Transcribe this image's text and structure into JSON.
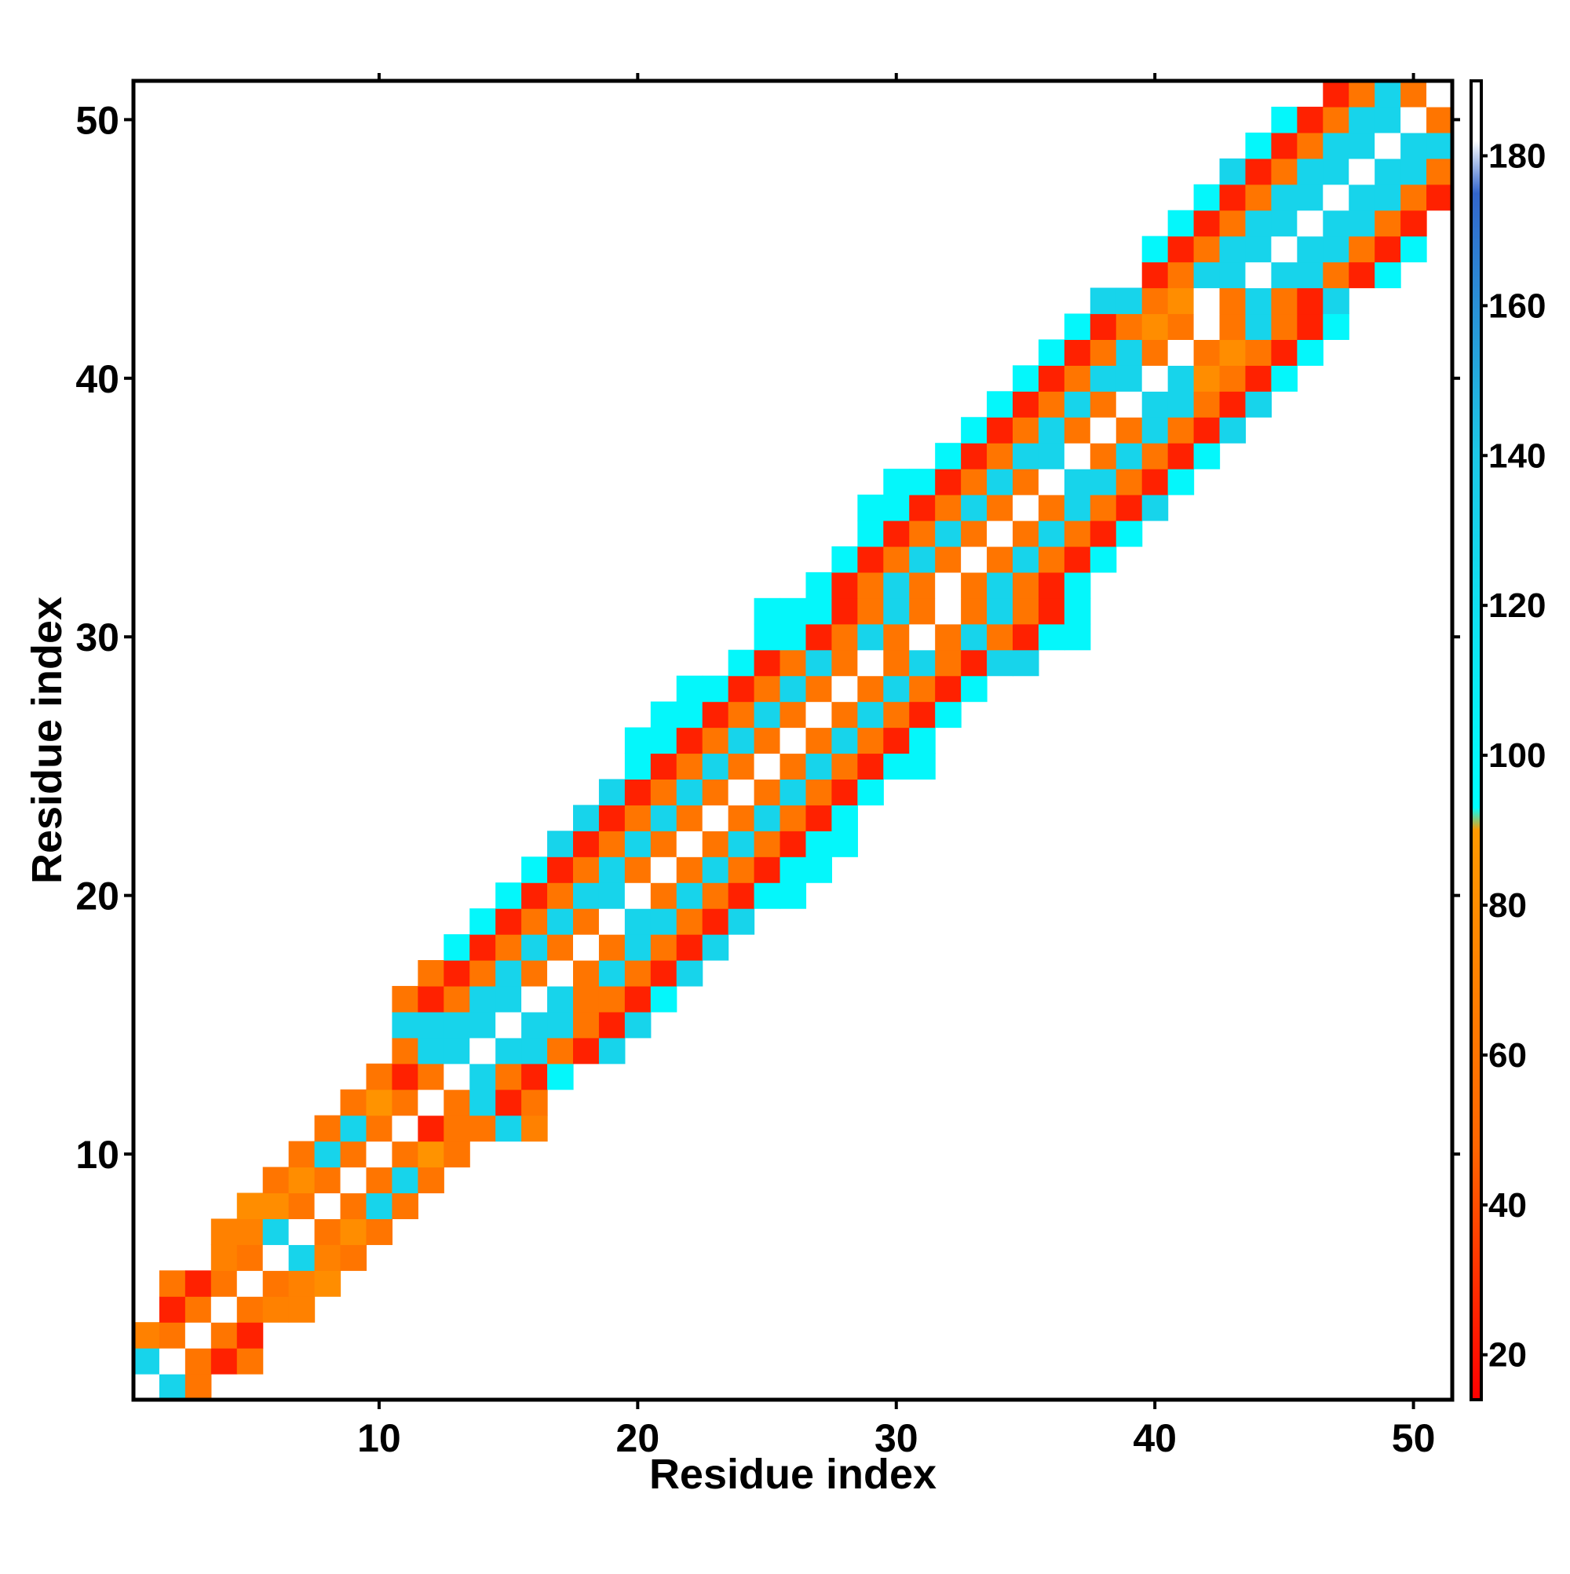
{
  "chart_data": {
    "type": "heatmap",
    "title": "",
    "xlabel": "Residue index",
    "ylabel": "Residue index",
    "x_range": [
      0.5,
      51.5
    ],
    "y_range": [
      0.5,
      51.5
    ],
    "x_ticks": [
      "10",
      "20",
      "30",
      "40",
      "50"
    ],
    "y_ticks": [
      "10",
      "20",
      "30",
      "40",
      "50"
    ],
    "x_tick_values": [
      10,
      20,
      30,
      40,
      50
    ],
    "y_tick_values": [
      10,
      20,
      30,
      40,
      50
    ],
    "colorbar": {
      "range": [
        14,
        190
      ],
      "ticks": [
        "20",
        "40",
        "60",
        "80",
        "100",
        "120",
        "140",
        "160",
        "180"
      ],
      "tick_values": [
        20,
        40,
        60,
        80,
        100,
        120,
        140,
        160,
        180
      ],
      "stops": [
        {
          "value": 14,
          "color": "#ff0000"
        },
        {
          "value": 48,
          "color": "#ff6600"
        },
        {
          "value": 90,
          "color": "#ff9900"
        },
        {
          "value": 93,
          "color": "#00ffff"
        },
        {
          "value": 140,
          "color": "#1dc8e6"
        },
        {
          "value": 175,
          "color": "#3366cc"
        },
        {
          "value": 182,
          "color": "#ffffff"
        },
        {
          "value": 190,
          "color": "#ffffff"
        }
      ]
    },
    "band_width": 10,
    "rows": [
      {
        "residue": 1,
        "start": 1,
        "values": [
          190,
          130,
          60
        ]
      },
      {
        "residue": 2,
        "start": 1,
        "values": [
          130,
          190,
          60,
          25,
          60
        ]
      },
      {
        "residue": 3,
        "start": 1,
        "values": [
          70,
          60,
          190,
          60,
          25
        ]
      },
      {
        "residue": 4,
        "start": 2,
        "values": [
          25,
          60,
          190,
          60,
          70,
          70
        ]
      },
      {
        "residue": 5,
        "start": 2,
        "values": [
          60,
          25,
          60,
          190,
          60,
          70,
          80
        ]
      },
      {
        "residue": 6,
        "start": 4,
        "values": [
          70,
          60,
          190,
          130,
          70,
          60
        ]
      },
      {
        "residue": 7,
        "start": 4,
        "values": [
          70,
          70,
          130,
          190,
          60,
          80,
          60
        ]
      },
      {
        "residue": 8,
        "start": 5,
        "values": [
          80,
          80,
          60,
          190,
          60,
          130,
          60
        ]
      },
      {
        "residue": 9,
        "start": 6,
        "values": [
          60,
          80,
          60,
          190,
          60,
          130,
          60
        ]
      },
      {
        "residue": 10,
        "start": 7,
        "values": [
          60,
          130,
          60,
          190,
          60,
          85,
          60
        ]
      },
      {
        "residue": 11,
        "start": 8,
        "values": [
          60,
          130,
          60,
          190,
          25,
          60,
          60,
          130,
          70
        ]
      },
      {
        "residue": 12,
        "start": 9,
        "values": [
          60,
          85,
          60,
          190,
          60,
          130,
          25,
          60
        ]
      },
      {
        "residue": 13,
        "start": 10,
        "values": [
          60,
          25,
          60,
          190,
          130,
          60,
          25,
          100
        ]
      },
      {
        "residue": 14,
        "start": 11,
        "values": [
          60,
          130,
          130,
          190,
          130,
          130,
          60,
          25,
          130
        ]
      },
      {
        "residue": 15,
        "start": 11,
        "values": [
          130,
          130,
          130,
          130,
          190,
          130,
          130,
          60,
          25,
          130
        ]
      },
      {
        "residue": 16,
        "start": 11,
        "values": [
          60,
          25,
          60,
          130,
          130,
          190,
          130,
          60,
          60,
          25,
          100
        ]
      },
      {
        "residue": 17,
        "start": 12,
        "values": [
          60,
          25,
          60,
          130,
          60,
          190,
          60,
          130,
          60,
          25,
          130
        ]
      },
      {
        "residue": 18,
        "start": 13,
        "values": [
          100,
          25,
          60,
          130,
          60,
          190,
          60,
          130,
          60,
          25,
          130
        ]
      },
      {
        "residue": 19,
        "start": 14,
        "values": [
          100,
          25,
          60,
          130,
          60,
          190,
          130,
          130,
          60,
          25,
          130
        ]
      },
      {
        "residue": 20,
        "start": 15,
        "values": [
          100,
          25,
          60,
          130,
          130,
          190,
          60,
          130,
          60,
          25,
          100,
          100
        ]
      },
      {
        "residue": 21,
        "start": 16,
        "values": [
          100,
          25,
          60,
          130,
          60,
          190,
          60,
          130,
          60,
          25,
          100,
          100
        ]
      },
      {
        "residue": 22,
        "start": 17,
        "values": [
          130,
          25,
          60,
          130,
          60,
          190,
          60,
          130,
          60,
          25,
          100,
          100
        ]
      },
      {
        "residue": 23,
        "start": 18,
        "values": [
          130,
          25,
          60,
          130,
          60,
          190,
          60,
          130,
          60,
          25,
          100
        ]
      },
      {
        "residue": 24,
        "start": 19,
        "values": [
          130,
          25,
          60,
          130,
          60,
          190,
          60,
          130,
          60,
          25,
          100
        ]
      },
      {
        "residue": 25,
        "start": 20,
        "values": [
          100,
          25,
          60,
          130,
          60,
          190,
          60,
          130,
          60,
          25,
          100,
          100
        ]
      },
      {
        "residue": 26,
        "start": 20,
        "values": [
          100,
          100,
          25,
          60,
          130,
          60,
          190,
          60,
          130,
          60,
          25,
          100
        ]
      },
      {
        "residue": 27,
        "start": 21,
        "values": [
          100,
          100,
          25,
          60,
          130,
          60,
          190,
          60,
          130,
          60,
          25,
          100
        ]
      },
      {
        "residue": 28,
        "start": 22,
        "values": [
          100,
          100,
          25,
          60,
          130,
          60,
          190,
          60,
          130,
          60,
          25,
          100
        ]
      },
      {
        "residue": 29,
        "start": 24,
        "values": [
          100,
          25,
          60,
          130,
          60,
          190,
          60,
          130,
          60,
          25,
          130,
          130
        ]
      },
      {
        "residue": 30,
        "start": 25,
        "values": [
          100,
          100,
          25,
          60,
          130,
          60,
          190,
          60,
          130,
          60,
          25,
          100,
          100
        ]
      },
      {
        "residue": 31,
        "start": 25,
        "values": [
          100,
          100,
          100,
          25,
          60,
          130,
          60,
          190,
          60,
          130,
          60,
          25,
          100
        ]
      },
      {
        "residue": 32,
        "start": 27,
        "values": [
          100,
          25,
          60,
          130,
          60,
          190,
          60,
          130,
          60,
          25,
          100
        ]
      },
      {
        "residue": 33,
        "start": 28,
        "values": [
          100,
          25,
          60,
          130,
          60,
          190,
          60,
          130,
          60,
          25,
          100
        ]
      },
      {
        "residue": 34,
        "start": 29,
        "values": [
          100,
          25,
          60,
          130,
          60,
          190,
          60,
          130,
          60,
          25,
          100
        ]
      },
      {
        "residue": 35,
        "start": 29,
        "values": [
          100,
          100,
          25,
          60,
          130,
          60,
          190,
          60,
          130,
          60,
          25,
          130
        ]
      },
      {
        "residue": 36,
        "start": 30,
        "values": [
          100,
          100,
          25,
          60,
          130,
          60,
          190,
          130,
          130,
          60,
          25,
          100
        ]
      },
      {
        "residue": 37,
        "start": 32,
        "values": [
          100,
          25,
          60,
          130,
          130,
          190,
          60,
          130,
          60,
          25,
          100
        ]
      },
      {
        "residue": 38,
        "start": 33,
        "values": [
          100,
          25,
          60,
          130,
          60,
          190,
          60,
          130,
          60,
          25,
          130
        ]
      },
      {
        "residue": 39,
        "start": 34,
        "values": [
          100,
          25,
          60,
          130,
          60,
          190,
          130,
          130,
          60,
          25,
          130
        ]
      },
      {
        "residue": 40,
        "start": 35,
        "values": [
          100,
          25,
          60,
          130,
          130,
          190,
          130,
          80,
          60,
          25,
          100
        ]
      },
      {
        "residue": 41,
        "start": 36,
        "values": [
          100,
          25,
          60,
          130,
          60,
          190,
          60,
          80,
          60,
          25,
          100
        ]
      },
      {
        "residue": 42,
        "start": 37,
        "values": [
          100,
          25,
          60,
          80,
          60,
          190,
          60,
          130,
          60,
          25,
          100
        ]
      },
      {
        "residue": 43,
        "start": 38,
        "values": [
          130,
          130,
          60,
          80,
          190,
          60,
          130,
          60,
          25,
          130
        ]
      },
      {
        "residue": 44,
        "start": 40,
        "values": [
          25,
          60,
          130,
          130,
          190,
          130,
          130,
          60,
          25,
          100
        ]
      },
      {
        "residue": 45,
        "start": 40,
        "values": [
          100,
          25,
          60,
          130,
          130,
          190,
          130,
          130,
          60,
          25,
          100
        ]
      },
      {
        "residue": 46,
        "start": 41,
        "values": [
          100,
          25,
          60,
          130,
          130,
          190,
          130,
          130,
          60,
          25
        ]
      },
      {
        "residue": 47,
        "start": 42,
        "values": [
          100,
          25,
          60,
          130,
          130,
          190,
          130,
          130,
          60,
          25
        ]
      },
      {
        "residue": 48,
        "start": 43,
        "values": [
          130,
          25,
          60,
          130,
          130,
          190,
          130,
          130,
          60
        ]
      },
      {
        "residue": 49,
        "start": 44,
        "values": [
          100,
          25,
          60,
          130,
          130,
          190,
          130,
          130
        ]
      },
      {
        "residue": 50,
        "start": 45,
        "values": [
          100,
          25,
          60,
          130,
          130,
          190,
          60
        ]
      },
      {
        "residue": 51,
        "start": 47,
        "values": [
          25,
          60,
          130,
          60,
          190
        ]
      }
    ]
  }
}
